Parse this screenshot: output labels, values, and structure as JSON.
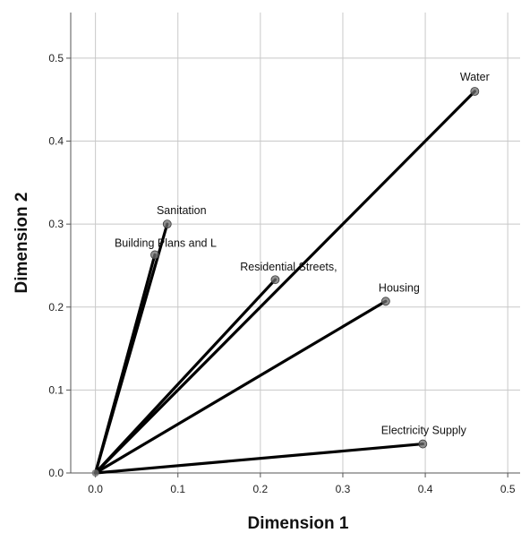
{
  "chart_data": {
    "type": "scatter",
    "xlabel": "Dimension 1",
    "ylabel": "Dimension 2",
    "xlim": [
      -0.03,
      0.515
    ],
    "ylim": [
      0,
      0.555
    ],
    "xticks": [
      "0.0",
      "0.1",
      "0.2",
      "0.3",
      "0.4",
      "0.5"
    ],
    "yticks": [
      "0.0",
      "0.1",
      "0.2",
      "0.3",
      "0.4",
      "0.5"
    ],
    "grid": true,
    "vectors_from_origin": true,
    "points": [
      {
        "label": "Water",
        "x": 0.46,
        "y": 0.46
      },
      {
        "label": "Sanitation",
        "x": 0.087,
        "y": 0.3
      },
      {
        "label": "Building Plans and L",
        "x": 0.072,
        "y": 0.263
      },
      {
        "label": "Residential Streets,",
        "x": 0.218,
        "y": 0.233
      },
      {
        "label": "Housing",
        "x": 0.352,
        "y": 0.207
      },
      {
        "label": "Electricity  Supply",
        "x": 0.397,
        "y": 0.035
      }
    ],
    "colors": {
      "line": "#000000",
      "marker": "#6e6e6e",
      "grid": "#c8c8c8",
      "axis": "#555555"
    }
  }
}
